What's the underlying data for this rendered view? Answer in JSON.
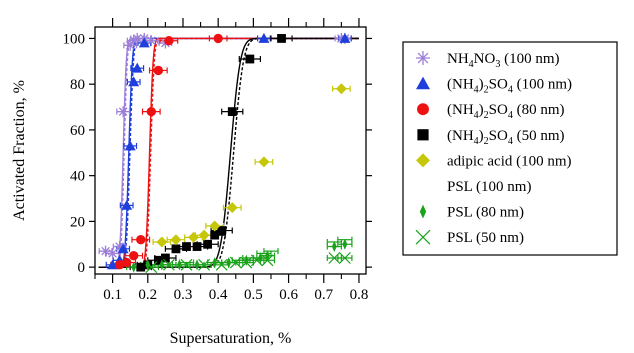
{
  "chart_data": {
    "type": "scatter",
    "xlabel": "Supersaturation, %",
    "ylabel": "Activated Fraction, %",
    "xlim": [
      0.05,
      0.82
    ],
    "ylim": [
      -3,
      105
    ],
    "x_ticks": [
      0.1,
      0.2,
      0.3,
      0.4,
      0.5,
      0.6,
      0.7,
      0.8
    ],
    "x_tick_labels": [
      "0.1",
      "0.2",
      "0.3",
      "0.4",
      "0.5",
      "0.6",
      "0.7",
      "0.8"
    ],
    "y_ticks": [
      0,
      20,
      40,
      60,
      80,
      100
    ],
    "y_tick_labels": [
      "0",
      "20",
      "40",
      "60",
      "80",
      "100"
    ],
    "legend_placement": "right",
    "series": [
      {
        "legend": [
          "NH",
          "4",
          "NO",
          "3",
          " (100 nm)"
        ],
        "marker": "star",
        "color": "#9d7fd8",
        "points": [
          [
            0.08,
            7
          ],
          [
            0.1,
            6
          ],
          [
            0.12,
            9
          ],
          [
            0.13,
            68
          ],
          [
            0.15,
            97
          ],
          [
            0.16,
            99
          ],
          [
            0.17,
            100
          ],
          [
            0.19,
            100
          ],
          [
            0.21,
            99
          ],
          [
            0.25,
            98
          ],
          [
            0.75,
            100
          ],
          [
            0.76,
            100
          ]
        ],
        "xerr": 0.018,
        "curve": [
          0.13,
          0.007
        ]
      },
      {
        "legend": [
          "(NH",
          "4",
          ")",
          "2",
          "SO",
          "4",
          " (100 nm)"
        ],
        "marker": "triangle",
        "color": "#1f3fdc",
        "points": [
          [
            0.1,
            1
          ],
          [
            0.12,
            3
          ],
          [
            0.13,
            8
          ],
          [
            0.14,
            27
          ],
          [
            0.15,
            53
          ],
          [
            0.16,
            81
          ],
          [
            0.17,
            87
          ],
          [
            0.19,
            98
          ],
          [
            0.53,
            100
          ],
          [
            0.76,
            100
          ]
        ],
        "xerr": 0.018,
        "curve": [
          0.146,
          0.008
        ]
      },
      {
        "legend": [
          "(NH",
          "4",
          ")",
          "2",
          "SO",
          "4",
          " (80 nm)"
        ],
        "marker": "circle",
        "color": "#ee1111",
        "points": [
          [
            0.12,
            1
          ],
          [
            0.14,
            2
          ],
          [
            0.16,
            5
          ],
          [
            0.18,
            12
          ],
          [
            0.21,
            68
          ],
          [
            0.23,
            86
          ],
          [
            0.26,
            99
          ],
          [
            0.4,
            100
          ]
        ],
        "xerr": 0.025,
        "curve": [
          0.205,
          0.008
        ]
      },
      {
        "legend": [
          "(NH",
          "4",
          ")",
          "2",
          "SO",
          "4",
          " (50 nm)"
        ],
        "marker": "square",
        "color": "#000000",
        "points": [
          [
            0.18,
            0
          ],
          [
            0.2,
            1
          ],
          [
            0.23,
            3
          ],
          [
            0.25,
            4
          ],
          [
            0.28,
            8
          ],
          [
            0.31,
            9
          ],
          [
            0.34,
            9
          ],
          [
            0.37,
            10
          ],
          [
            0.39,
            14
          ],
          [
            0.41,
            16
          ],
          [
            0.44,
            68
          ],
          [
            0.49,
            91
          ],
          [
            0.58,
            100
          ]
        ],
        "xerr": 0.03,
        "curve": [
          0.435,
          0.022
        ]
      },
      {
        "legend": [
          "adipic acid (100 nm)"
        ],
        "marker": "diamond",
        "color": "#c7c70a",
        "points": [
          [
            0.24,
            11
          ],
          [
            0.28,
            12
          ],
          [
            0.33,
            13
          ],
          [
            0.36,
            14
          ],
          [
            0.39,
            18
          ],
          [
            0.44,
            26
          ],
          [
            0.53,
            46
          ],
          [
            0.75,
            78
          ]
        ],
        "xerr": 0.025
      },
      {
        "legend": [
          "PSL (100 nm)"
        ],
        "marker": "bowtie",
        "color": "#1aa31a",
        "points": [
          [
            0.26,
            1
          ],
          [
            0.31,
            2
          ],
          [
            0.36,
            1
          ],
          [
            0.41,
            2
          ],
          [
            0.46,
            3
          ],
          [
            0.49,
            4
          ],
          [
            0.53,
            6
          ],
          [
            0.55,
            7
          ],
          [
            0.73,
            11
          ],
          [
            0.76,
            12
          ]
        ],
        "xerr": 0.02
      },
      {
        "legend": [
          "PSL (80 nm)"
        ],
        "marker": "thin-diamond",
        "color": "#1aa31a",
        "points": [
          [
            0.16,
            0
          ],
          [
            0.2,
            1
          ],
          [
            0.24,
            1
          ],
          [
            0.29,
            1
          ],
          [
            0.34,
            1
          ],
          [
            0.39,
            2
          ],
          [
            0.43,
            2
          ],
          [
            0.48,
            3
          ],
          [
            0.52,
            4
          ],
          [
            0.54,
            5
          ],
          [
            0.73,
            9
          ],
          [
            0.76,
            10
          ]
        ],
        "xerr": 0.02
      },
      {
        "legend": [
          "PSL (50 nm)"
        ],
        "marker": "x",
        "color": "#1aa31a",
        "points": [
          [
            0.21,
            0
          ],
          [
            0.26,
            1
          ],
          [
            0.31,
            1
          ],
          [
            0.36,
            1
          ],
          [
            0.41,
            1
          ],
          [
            0.45,
            2
          ],
          [
            0.48,
            2
          ],
          [
            0.51,
            3
          ],
          [
            0.54,
            3
          ],
          [
            0.73,
            4
          ],
          [
            0.76,
            4
          ]
        ],
        "xerr": 0.02
      }
    ]
  }
}
